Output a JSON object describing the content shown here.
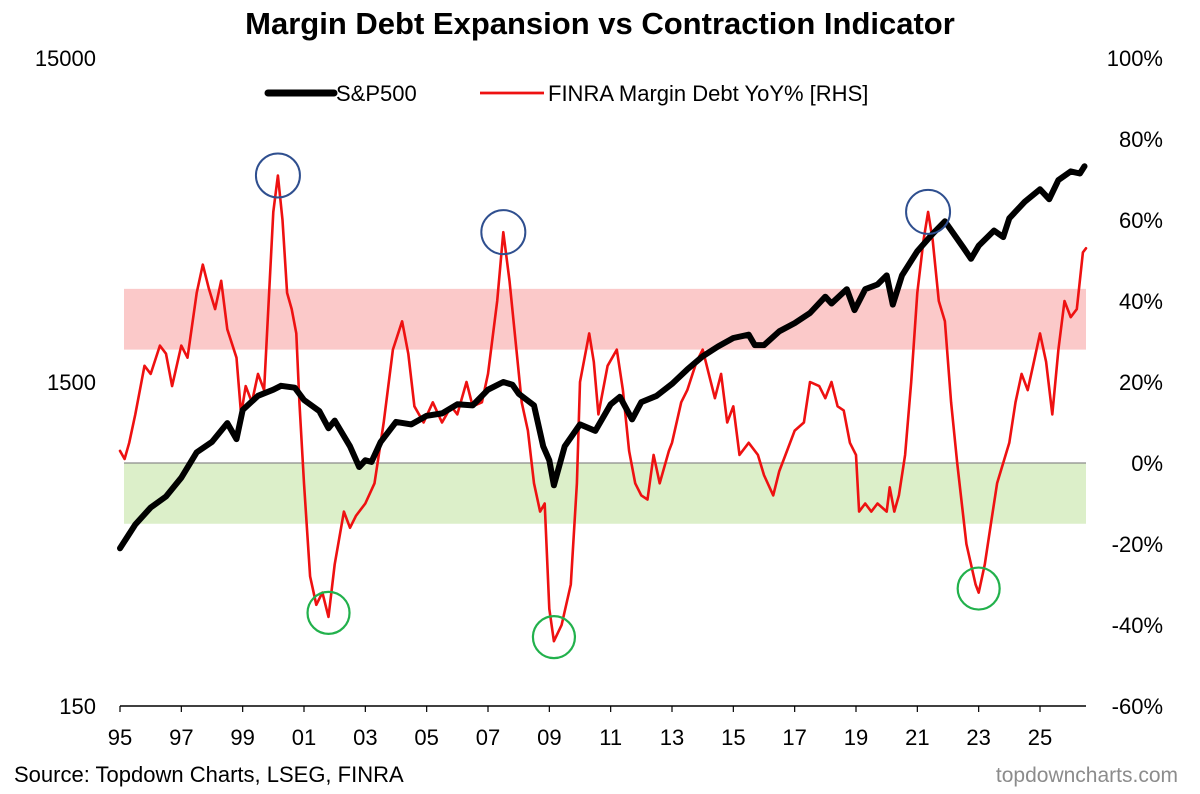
{
  "title": "Margin Debt Expansion vs Contraction Indicator",
  "source": "Source: Topdown Charts, LSEG, FINRA",
  "watermark": "topdowncharts.com",
  "chart_data": {
    "type": "line",
    "title": "Margin Debt Expansion vs Contraction Indicator",
    "x_tick_labels": [
      "95",
      "97",
      "99",
      "01",
      "03",
      "05",
      "07",
      "09",
      "11",
      "13",
      "15",
      "17",
      "19",
      "21",
      "23",
      "25"
    ],
    "x_range": [
      1995.0,
      2026.5
    ],
    "left_axis": {
      "scale": "log",
      "range": [
        150,
        15000
      ],
      "tick_labels": [
        "150",
        "1500",
        "15000"
      ]
    },
    "right_axis": {
      "scale": "linear",
      "range": [
        -60,
        100
      ],
      "unit": "%",
      "tick_labels": [
        "-60%",
        "-40%",
        "-20%",
        "0%",
        "20%",
        "40%",
        "60%",
        "80%",
        "100%"
      ]
    },
    "legend": {
      "placement": "top-center"
    },
    "colors": {
      "sp500": "#000000",
      "margin": "#ee1111",
      "red_band": "#fbc9c9",
      "green_band": "#dcefc9",
      "peak_circle": "#2f4f8f",
      "trough_circle": "#22b14c",
      "zero_line": "#8c8c8c"
    },
    "bands": [
      {
        "name": "expansion-band",
        "y_from": 28,
        "y_to": 43,
        "axis": "right"
      },
      {
        "name": "contraction-band",
        "y_from": -15,
        "y_to": 0,
        "axis": "right"
      }
    ],
    "series": [
      {
        "name": "S&P500",
        "axis": "left",
        "points": [
          [
            1995.0,
            460
          ],
          [
            1995.5,
            545
          ],
          [
            1996.0,
            615
          ],
          [
            1996.5,
            665
          ],
          [
            1997.0,
            760
          ],
          [
            1997.5,
            910
          ],
          [
            1998.0,
            980
          ],
          [
            1998.5,
            1120
          ],
          [
            1998.8,
            1000
          ],
          [
            1999.0,
            1230
          ],
          [
            1999.5,
            1360
          ],
          [
            2000.0,
            1420
          ],
          [
            2000.25,
            1460
          ],
          [
            2000.7,
            1440
          ],
          [
            2001.0,
            1320
          ],
          [
            2001.5,
            1220
          ],
          [
            2001.8,
            1080
          ],
          [
            2002.0,
            1140
          ],
          [
            2002.5,
            950
          ],
          [
            2002.8,
            820
          ],
          [
            2003.0,
            860
          ],
          [
            2003.2,
            850
          ],
          [
            2003.5,
            980
          ],
          [
            2004.0,
            1130
          ],
          [
            2004.5,
            1110
          ],
          [
            2005.0,
            1180
          ],
          [
            2005.5,
            1200
          ],
          [
            2006.0,
            1280
          ],
          [
            2006.5,
            1270
          ],
          [
            2007.0,
            1420
          ],
          [
            2007.5,
            1500
          ],
          [
            2007.8,
            1470
          ],
          [
            2008.0,
            1380
          ],
          [
            2008.5,
            1270
          ],
          [
            2008.8,
            950
          ],
          [
            2009.0,
            860
          ],
          [
            2009.15,
            720
          ],
          [
            2009.5,
            950
          ],
          [
            2010.0,
            1110
          ],
          [
            2010.5,
            1060
          ],
          [
            2011.0,
            1280
          ],
          [
            2011.3,
            1350
          ],
          [
            2011.7,
            1150
          ],
          [
            2012.0,
            1300
          ],
          [
            2012.5,
            1360
          ],
          [
            2013.0,
            1480
          ],
          [
            2013.5,
            1640
          ],
          [
            2014.0,
            1800
          ],
          [
            2014.5,
            1930
          ],
          [
            2015.0,
            2050
          ],
          [
            2015.5,
            2100
          ],
          [
            2015.7,
            1950
          ],
          [
            2016.0,
            1950
          ],
          [
            2016.5,
            2150
          ],
          [
            2017.0,
            2280
          ],
          [
            2017.5,
            2450
          ],
          [
            2018.0,
            2750
          ],
          [
            2018.2,
            2620
          ],
          [
            2018.7,
            2900
          ],
          [
            2018.95,
            2500
          ],
          [
            2019.3,
            2900
          ],
          [
            2019.7,
            3000
          ],
          [
            2020.0,
            3200
          ],
          [
            2020.2,
            2600
          ],
          [
            2020.5,
            3200
          ],
          [
            2021.0,
            3800
          ],
          [
            2021.5,
            4300
          ],
          [
            2021.9,
            4700
          ],
          [
            2022.5,
            3900
          ],
          [
            2022.75,
            3600
          ],
          [
            2023.0,
            3950
          ],
          [
            2023.5,
            4400
          ],
          [
            2023.8,
            4200
          ],
          [
            2024.0,
            4800
          ],
          [
            2024.5,
            5400
          ],
          [
            2025.0,
            5900
          ],
          [
            2025.3,
            5500
          ],
          [
            2025.6,
            6300
          ],
          [
            2026.0,
            6700
          ],
          [
            2026.3,
            6600
          ],
          [
            2026.45,
            6950
          ]
        ]
      },
      {
        "name": "FINRA Margin Debt YoY% [RHS]",
        "axis": "right",
        "points": [
          [
            1995.0,
            3
          ],
          [
            1995.15,
            1
          ],
          [
            1995.3,
            5
          ],
          [
            1995.5,
            12
          ],
          [
            1995.8,
            24
          ],
          [
            1996.0,
            22
          ],
          [
            1996.3,
            29
          ],
          [
            1996.5,
            27
          ],
          [
            1996.7,
            19
          ],
          [
            1997.0,
            29
          ],
          [
            1997.2,
            26
          ],
          [
            1997.5,
            42
          ],
          [
            1997.7,
            49
          ],
          [
            1997.9,
            43
          ],
          [
            1998.1,
            38
          ],
          [
            1998.3,
            45
          ],
          [
            1998.5,
            33
          ],
          [
            1998.8,
            26
          ],
          [
            1998.95,
            12
          ],
          [
            1999.1,
            19
          ],
          [
            1999.3,
            15
          ],
          [
            1999.5,
            22
          ],
          [
            1999.7,
            18
          ],
          [
            2000.0,
            62
          ],
          [
            2000.15,
            71
          ],
          [
            2000.3,
            60
          ],
          [
            2000.45,
            42
          ],
          [
            2000.6,
            38
          ],
          [
            2000.75,
            32
          ],
          [
            2000.85,
            15
          ],
          [
            2001.0,
            -5
          ],
          [
            2001.2,
            -28
          ],
          [
            2001.4,
            -35
          ],
          [
            2001.6,
            -32
          ],
          [
            2001.8,
            -38
          ],
          [
            2002.0,
            -25
          ],
          [
            2002.3,
            -12
          ],
          [
            2002.5,
            -16
          ],
          [
            2002.7,
            -13
          ],
          [
            2003.0,
            -10
          ],
          [
            2003.3,
            -5
          ],
          [
            2003.6,
            10
          ],
          [
            2003.9,
            28
          ],
          [
            2004.2,
            35
          ],
          [
            2004.4,
            27
          ],
          [
            2004.6,
            14
          ],
          [
            2004.9,
            10
          ],
          [
            2005.2,
            15
          ],
          [
            2005.5,
            10
          ],
          [
            2005.8,
            14
          ],
          [
            2006.0,
            12
          ],
          [
            2006.3,
            20
          ],
          [
            2006.5,
            14
          ],
          [
            2006.8,
            15
          ],
          [
            2007.0,
            22
          ],
          [
            2007.3,
            40
          ],
          [
            2007.5,
            57
          ],
          [
            2007.7,
            45
          ],
          [
            2007.9,
            30
          ],
          [
            2008.1,
            15
          ],
          [
            2008.3,
            8
          ],
          [
            2008.5,
            -5
          ],
          [
            2008.7,
            -12
          ],
          [
            2008.85,
            -10
          ],
          [
            2009.0,
            -36
          ],
          [
            2009.15,
            -44
          ],
          [
            2009.4,
            -40
          ],
          [
            2009.7,
            -30
          ],
          [
            2009.9,
            -5
          ],
          [
            2010.0,
            20
          ],
          [
            2010.3,
            32
          ],
          [
            2010.45,
            25
          ],
          [
            2010.6,
            12
          ],
          [
            2010.9,
            24
          ],
          [
            2011.2,
            28
          ],
          [
            2011.4,
            18
          ],
          [
            2011.6,
            3
          ],
          [
            2011.8,
            -5
          ],
          [
            2012.0,
            -8
          ],
          [
            2012.2,
            -9
          ],
          [
            2012.4,
            2
          ],
          [
            2012.6,
            -5
          ],
          [
            2012.9,
            3
          ],
          [
            2013.0,
            5
          ],
          [
            2013.3,
            15
          ],
          [
            2013.5,
            18
          ],
          [
            2013.8,
            25
          ],
          [
            2014.0,
            28
          ],
          [
            2014.2,
            22
          ],
          [
            2014.4,
            16
          ],
          [
            2014.6,
            22
          ],
          [
            2014.8,
            10
          ],
          [
            2015.0,
            14
          ],
          [
            2015.2,
            2
          ],
          [
            2015.5,
            5
          ],
          [
            2015.8,
            2
          ],
          [
            2016.0,
            -3
          ],
          [
            2016.3,
            -8
          ],
          [
            2016.5,
            -2
          ],
          [
            2016.7,
            2
          ],
          [
            2017.0,
            8
          ],
          [
            2017.3,
            10
          ],
          [
            2017.5,
            20
          ],
          [
            2017.8,
            19
          ],
          [
            2018.0,
            16
          ],
          [
            2018.2,
            20
          ],
          [
            2018.4,
            14
          ],
          [
            2018.6,
            13
          ],
          [
            2018.8,
            5
          ],
          [
            2019.0,
            2
          ],
          [
            2019.1,
            -12
          ],
          [
            2019.3,
            -10
          ],
          [
            2019.5,
            -12
          ],
          [
            2019.7,
            -10
          ],
          [
            2020.0,
            -12
          ],
          [
            2020.1,
            -6
          ],
          [
            2020.25,
            -12
          ],
          [
            2020.4,
            -8
          ],
          [
            2020.6,
            2
          ],
          [
            2020.8,
            20
          ],
          [
            2021.0,
            42
          ],
          [
            2021.2,
            55
          ],
          [
            2021.35,
            62
          ],
          [
            2021.5,
            55
          ],
          [
            2021.7,
            40
          ],
          [
            2021.9,
            35
          ],
          [
            2022.1,
            15
          ],
          [
            2022.3,
            0
          ],
          [
            2022.6,
            -20
          ],
          [
            2022.9,
            -30
          ],
          [
            2023.0,
            -32
          ],
          [
            2023.2,
            -25
          ],
          [
            2023.4,
            -15
          ],
          [
            2023.6,
            -5
          ],
          [
            2023.8,
            0
          ],
          [
            2024.0,
            5
          ],
          [
            2024.2,
            15
          ],
          [
            2024.4,
            22
          ],
          [
            2024.6,
            18
          ],
          [
            2024.8,
            25
          ],
          [
            2025.0,
            32
          ],
          [
            2025.2,
            25
          ],
          [
            2025.4,
            12
          ],
          [
            2025.6,
            28
          ],
          [
            2025.8,
            40
          ],
          [
            2026.0,
            36
          ],
          [
            2026.2,
            38
          ],
          [
            2026.4,
            52
          ],
          [
            2026.5,
            53
          ]
        ]
      }
    ],
    "peak_markers": [
      [
        2000.15,
        71
      ],
      [
        2007.5,
        57
      ],
      [
        2021.35,
        62
      ]
    ],
    "trough_markers": [
      [
        2001.8,
        -37
      ],
      [
        2009.15,
        -43
      ],
      [
        2023.0,
        -31
      ]
    ]
  }
}
